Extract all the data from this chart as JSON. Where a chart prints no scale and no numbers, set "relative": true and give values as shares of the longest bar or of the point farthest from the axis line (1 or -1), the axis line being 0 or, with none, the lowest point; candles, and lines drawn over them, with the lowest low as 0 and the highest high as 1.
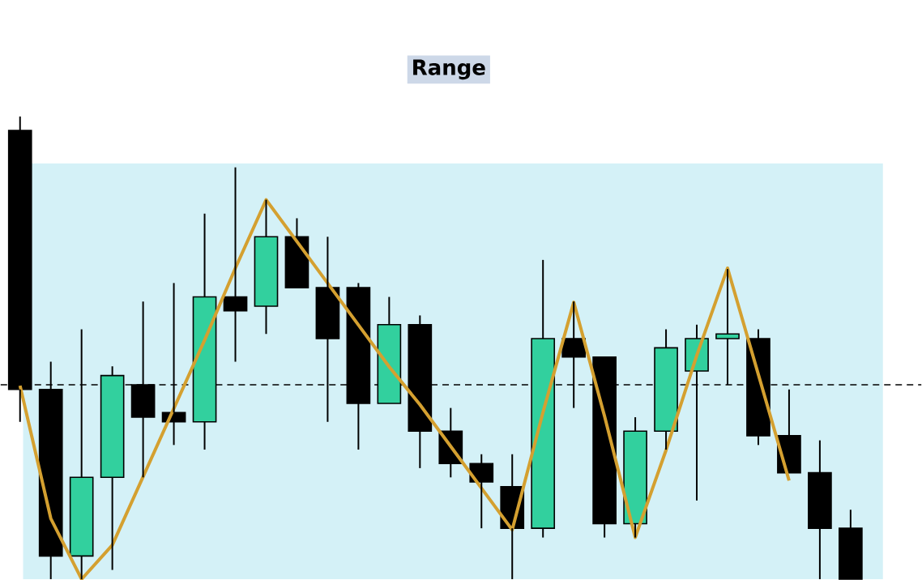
{
  "chart_data": [
    {
      "type": "candlestick",
      "relative": true,
      "tick_labels": false,
      "title": "Range",
      "categories": [
        null,
        null,
        null,
        null,
        null,
        null,
        null,
        null,
        null,
        null,
        null,
        null,
        null,
        null,
        null,
        null,
        null,
        null,
        null,
        null,
        null,
        null,
        null,
        null,
        null,
        null,
        null,
        null
      ],
      "ohlc": [
        [
          0.97,
          1.0,
          0.34,
          0.41
        ],
        [
          0.41,
          0.47,
          0,
          0.05
        ],
        [
          0.05,
          0.54,
          0,
          0.22
        ],
        [
          0.22,
          0.46,
          0.02,
          0.44
        ],
        [
          0.42,
          0.6,
          0.22,
          0.35
        ],
        [
          0.36,
          0.64,
          0.29,
          0.34
        ],
        [
          0.34,
          0.79,
          0.28,
          0.61
        ],
        [
          0.61,
          0.89,
          0.47,
          0.58
        ],
        [
          0.59,
          0.82,
          0.53,
          0.74
        ],
        [
          0.74,
          0.78,
          0.63,
          0.63
        ],
        [
          0.63,
          0.74,
          0.34,
          0.52
        ],
        [
          0.63,
          0.64,
          0.28,
          0.38
        ],
        [
          0.38,
          0.61,
          0.38,
          0.55
        ],
        [
          0.55,
          0.57,
          0.24,
          0.32
        ],
        [
          0.32,
          0.37,
          0.22,
          0.25
        ],
        [
          0.25,
          0.27,
          0.11,
          0.21
        ],
        [
          0.2,
          0.27,
          0,
          0.11
        ],
        [
          0.11,
          0.69,
          0.09,
          0.52
        ],
        [
          0.52,
          0.6,
          0.37,
          0.48
        ],
        [
          0.48,
          0.48,
          0.09,
          0.12
        ],
        [
          0.12,
          0.35,
          0.09,
          0.32
        ],
        [
          0.32,
          0.54,
          0.28,
          0.5
        ],
        [
          0.45,
          0.55,
          0.17,
          0.52
        ],
        [
          0.52,
          0.67,
          0.42,
          0.53
        ],
        [
          0.52,
          0.54,
          0.29,
          0.31
        ],
        [
          0.31,
          0.41,
          0.23,
          0.23
        ],
        [
          0.23,
          0.3,
          0,
          0.11
        ],
        [
          0.11,
          0.15,
          0,
          0.0
        ]
      ],
      "colors": [
        "#000000",
        "#000000",
        "#32d09e",
        "#32d09e",
        "#000000",
        "#000000",
        "#32d09e",
        "#000000",
        "#32d09e",
        "#000000",
        "#000000",
        "#000000",
        "#32d09e",
        "#000000",
        "#000000",
        "#000000",
        "#000000",
        "#32d09e",
        "#000000",
        "#000000",
        "#32d09e",
        "#32d09e",
        "#32d09e",
        "#32d09e",
        "#000000",
        "#000000",
        "#000000",
        "#000000"
      ],
      "ref_lines": [
        {
          "axis": "y",
          "value": 0.42,
          "line_style": "dashed",
          "color": "#000000"
        }
      ]
    },
    {
      "type": "line",
      "relative": true,
      "tick_labels": false,
      "color": "#d4a030",
      "categories": [
        null,
        null,
        null,
        null,
        null,
        null,
        null,
        null,
        null,
        null,
        null,
        null,
        null,
        null,
        null,
        null,
        null,
        null,
        null,
        null,
        null,
        null,
        null,
        null,
        null,
        null
      ],
      "values": [
        0.51,
        0.16,
        0,
        0.09,
        0.27,
        0.45,
        0.63,
        0.82,
        1,
        0.89,
        0.78,
        0.67,
        0.56,
        0.46,
        0.35,
        0.24,
        0.13,
        0.44,
        0.73,
        0.43,
        0.11,
        0.34,
        0.59,
        0.82,
        0.54,
        0.26
      ]
    }
  ]
}
